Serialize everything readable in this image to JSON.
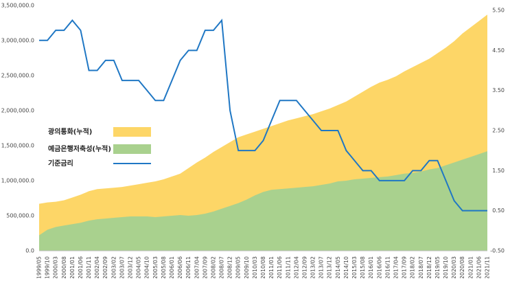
{
  "chart_data": {
    "type": "area-line",
    "categories": [
      "1999/05",
      "1999/10",
      "2000/03",
      "2000/08",
      "2001/01",
      "2001/06",
      "2001/11",
      "2002/04",
      "2002/09",
      "2003/02",
      "2003/07",
      "2003/12",
      "2004/05",
      "2004/10",
      "2005/03",
      "2005/08",
      "2006/01",
      "2006/06",
      "2006/11",
      "2007/04",
      "2007/09",
      "2008/02",
      "2008/07",
      "2008/12",
      "2009/05",
      "2009/10",
      "2010/03",
      "2010/08",
      "2011/01",
      "2011/06",
      "2011/11",
      "2012/04",
      "2012/09",
      "2013/02",
      "2013/07",
      "2013/12",
      "2014/05",
      "2014/10",
      "2015/03",
      "2015/08",
      "2016/01",
      "2016/06",
      "2016/11",
      "2017/04",
      "2017/09",
      "2018/02",
      "2018/07",
      "2018/12",
      "2019/05",
      "2019/10",
      "2020/03",
      "2020/08",
      "2021/01",
      "2021/06",
      "2021/11"
    ],
    "series": [
      {
        "name": "광의통화(누적)",
        "color": "#fdd667",
        "kind": "area",
        "values": [
          670000,
          690000,
          700000,
          720000,
          760000,
          800000,
          850000,
          880000,
          890000,
          900000,
          910000,
          930000,
          950000,
          970000,
          990000,
          1020000,
          1060000,
          1100000,
          1180000,
          1260000,
          1330000,
          1410000,
          1480000,
          1550000,
          1620000,
          1660000,
          1700000,
          1740000,
          1780000,
          1820000,
          1860000,
          1890000,
          1920000,
          1950000,
          1990000,
          2030000,
          2080000,
          2130000,
          2200000,
          2270000,
          2340000,
          2400000,
          2440000,
          2490000,
          2560000,
          2620000,
          2680000,
          2740000,
          2820000,
          2900000,
          2990000,
          3100000,
          3190000,
          3280000,
          3370000
        ]
      },
      {
        "name": "예금은행저축성(누적)",
        "color": "#a9d18e",
        "kind": "area",
        "values": [
          220000,
          300000,
          340000,
          360000,
          380000,
          400000,
          430000,
          450000,
          460000,
          470000,
          480000,
          490000,
          490000,
          490000,
          480000,
          490000,
          500000,
          510000,
          500000,
          510000,
          530000,
          560000,
          600000,
          640000,
          680000,
          730000,
          790000,
          840000,
          870000,
          880000,
          890000,
          900000,
          910000,
          920000,
          940000,
          960000,
          990000,
          1000000,
          1020000,
          1030000,
          1040000,
          1050000,
          1060000,
          1080000,
          1100000,
          1110000,
          1130000,
          1160000,
          1180000,
          1220000,
          1260000,
          1300000,
          1340000,
          1380000,
          1420000
        ]
      },
      {
        "name": "기준금리",
        "color": "#1f77c4",
        "kind": "line",
        "axis": "y2",
        "values": [
          4.75,
          4.75,
          5.0,
          5.0,
          5.25,
          5.0,
          4.0,
          4.0,
          4.25,
          4.25,
          3.75,
          3.75,
          3.75,
          3.5,
          3.25,
          3.25,
          3.75,
          4.25,
          4.5,
          4.5,
          5.0,
          5.0,
          5.25,
          3.0,
          2.0,
          2.0,
          2.0,
          2.25,
          2.75,
          3.25,
          3.25,
          3.25,
          3.0,
          2.75,
          2.5,
          2.5,
          2.5,
          2.0,
          1.75,
          1.5,
          1.5,
          1.25,
          1.25,
          1.25,
          1.25,
          1.5,
          1.5,
          1.75,
          1.75,
          1.25,
          0.75,
          0.5,
          0.5,
          0.5,
          0.5
        ]
      }
    ],
    "ylim": [
      0,
      3500000
    ],
    "yticks": [
      {
        "value": 0,
        "label": "0.0"
      },
      {
        "value": 500000,
        "label": "500,000.0"
      },
      {
        "value": 1000000,
        "label": "1,000,000.0"
      },
      {
        "value": 1500000,
        "label": "1,500,000.0"
      },
      {
        "value": 2000000,
        "label": "2,000,000.0"
      },
      {
        "value": 2500000,
        "label": "2,500,000.0"
      },
      {
        "value": 3000000,
        "label": "3,000,000.0"
      },
      {
        "value": 3500000,
        "label": "3,500,000.0"
      }
    ],
    "y2lim": [
      -0.5,
      5.62
    ],
    "y2ticks": [
      {
        "value": -0.5,
        "label": "-0.50"
      },
      {
        "value": 0.5,
        "label": "0.50"
      },
      {
        "value": 1.5,
        "label": "1.50"
      },
      {
        "value": 2.5,
        "label": "2.50"
      },
      {
        "value": 3.5,
        "label": "3.50"
      },
      {
        "value": 4.5,
        "label": "4.50"
      },
      {
        "value": 5.5,
        "label": "5.50"
      }
    ]
  }
}
